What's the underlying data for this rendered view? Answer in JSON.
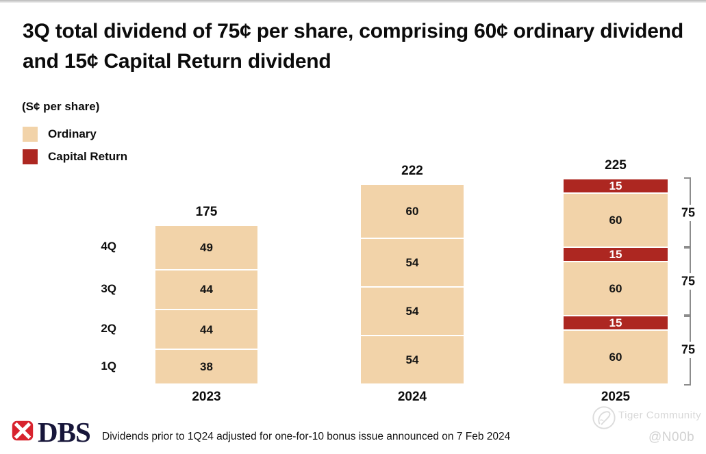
{
  "page": {
    "title": "3Q total dividend of 75¢ per share, comprising 60¢ ordinary dividend and 15¢ Capital Return dividend",
    "units_label": "(S¢ per share)"
  },
  "legend": {
    "items": [
      {
        "label": "Ordinary",
        "color": "#F2D3A9"
      },
      {
        "label": "Capital Return",
        "color": "#AD2721"
      }
    ]
  },
  "chart_data": {
    "type": "bar",
    "stacked": true,
    "title": "3Q total dividend of 75¢ per share, comprising 60¢ ordinary dividend and 15¢ Capital Return dividend",
    "units": "S¢ per share",
    "grid": false,
    "legend_position": "top-left",
    "categories": [
      "2023",
      "2024",
      "2025"
    ],
    "series_colors": {
      "ordinary": "#F2D3A9",
      "capital": "#AD2721"
    },
    "columns": [
      {
        "category": "2023",
        "total": "175",
        "segments": [
          {
            "value": 49,
            "type": "ordinary",
            "row_label": "4Q"
          },
          {
            "value": 44,
            "type": "ordinary",
            "row_label": "3Q"
          },
          {
            "value": 44,
            "type": "ordinary",
            "row_label": "2Q"
          },
          {
            "value": 38,
            "type": "ordinary",
            "row_label": "1Q"
          }
        ]
      },
      {
        "category": "2024",
        "total": "222",
        "segments": [
          {
            "value": 60,
            "type": "ordinary"
          },
          {
            "value": 54,
            "type": "ordinary"
          },
          {
            "value": 54,
            "type": "ordinary"
          },
          {
            "value": 54,
            "type": "ordinary"
          }
        ]
      },
      {
        "category": "2025",
        "total": "225",
        "segments": [
          {
            "value": 15,
            "type": "capital"
          },
          {
            "value": 60,
            "type": "ordinary"
          },
          {
            "value": 15,
            "type": "capital"
          },
          {
            "value": 60,
            "type": "ordinary"
          },
          {
            "value": 15,
            "type": "capital"
          },
          {
            "value": 60,
            "type": "ordinary"
          }
        ],
        "brackets": [
          {
            "from": 0,
            "to": 1,
            "label": "75"
          },
          {
            "from": 2,
            "to": 3,
            "label": "75"
          },
          {
            "from": 4,
            "to": 5,
            "label": "75"
          }
        ]
      }
    ]
  },
  "footer": {
    "logo_text": "DBS",
    "footnote": "Dividends prior to 1Q24 adjusted for one-for-10 bonus issue announced on 7 Feb 2024"
  },
  "watermark": {
    "community": "Tiger Community",
    "handle": "@N00b"
  }
}
